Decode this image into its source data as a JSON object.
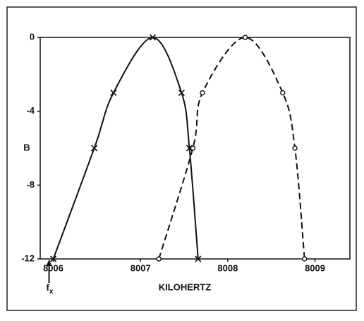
{
  "chart_data": {
    "type": "line",
    "xlabel": "KILOHERTZ",
    "ylabel": "B",
    "annotation": "f",
    "annotation_sub": "x",
    "annotation_x": 8006,
    "xlim": [
      8005.85,
      8009.4
    ],
    "xticks": [
      8006,
      8007,
      8008,
      8009
    ],
    "ylim": [
      -12,
      0
    ],
    "yticks": [
      0,
      -4,
      -8,
      -12
    ],
    "series": [
      {
        "name": "solid",
        "color": "#111111",
        "dash": false,
        "marker": "x",
        "x": [
          8006.0,
          8006.47,
          8006.69,
          8007.14,
          8007.47,
          8007.56,
          8007.66
        ],
        "values": [
          -12,
          -6,
          -3,
          0,
          -3,
          -6,
          -12
        ]
      },
      {
        "name": "dashed",
        "color": "#111111",
        "dash": true,
        "marker": "o",
        "x": [
          8007.21,
          8007.6,
          8007.71,
          8008.2,
          8008.63,
          8008.77,
          8008.88
        ],
        "values": [
          -12,
          -6,
          -3,
          0,
          -3,
          -6,
          -12
        ]
      }
    ]
  }
}
